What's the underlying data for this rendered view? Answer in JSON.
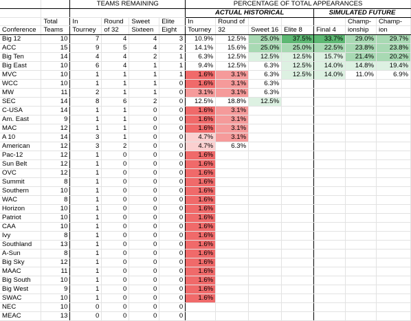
{
  "headers": {
    "teams_remaining": "TEAMS REMAINING",
    "pct_total": "PERCENTAGE OF TOTAL APPEARANCES",
    "actual": "ACTUAL HISTORICAL",
    "simulated": "SIMULATED FUTURE",
    "col1_a": "",
    "col1_b": "Conference",
    "col2_a": "Total",
    "col2_b": "Teams",
    "col3_a": "In",
    "col3_b": "Tourney",
    "col4_a": "Round",
    "col4_b": "of 32",
    "col5_a": "Sweet",
    "col5_b": "Sixteen",
    "col6_a": "Elite",
    "col6_b": "Eight",
    "col7_a": "In",
    "col7_b": "Tourney",
    "col8_a": "Round of",
    "col8_b": "32",
    "col9_a": "",
    "col9_b": "Sweet 16",
    "col10_a": "",
    "col10_b": "Elite 8",
    "col11_a": "",
    "col11_b": "Final 4",
    "col12_a": "Champ-",
    "col12_b": "ionship",
    "col13_a": "Champ-",
    "col13_b": "ion"
  },
  "colors": {
    "red_strong": "#f06a6a",
    "red_mid": "#f59a9a",
    "red_light": "#fbd0d0",
    "green_strong": "#5db873",
    "green_mid": "#a8d9b3",
    "green_light": "#ddf1e2"
  },
  "rows": [
    {
      "conf": "Big 12",
      "total": "10",
      "tourney": "7",
      "r32": "4",
      "s16": "4",
      "e8": "3",
      "p_in": "10.9%",
      "p_r32": "12.5%",
      "p_s16": "25.0%",
      "p_e8": "37.5%",
      "f4": "33.7%",
      "champ_game": "29.0%",
      "champ": "29.7%"
    },
    {
      "conf": "ACC",
      "total": "15",
      "tourney": "9",
      "r32": "5",
      "s16": "4",
      "e8": "2",
      "p_in": "14.1%",
      "p_r32": "15.6%",
      "p_s16": "25.0%",
      "p_e8": "25.0%",
      "f4": "22.5%",
      "champ_game": "23.8%",
      "champ": "23.8%"
    },
    {
      "conf": "Big Ten",
      "total": "14",
      "tourney": "4",
      "r32": "4",
      "s16": "2",
      "e8": "1",
      "p_in": "6.3%",
      "p_r32": "12.5%",
      "p_s16": "12.5%",
      "p_e8": "12.5%",
      "f4": "15.7%",
      "champ_game": "21.4%",
      "champ": "20.2%"
    },
    {
      "conf": "Big East",
      "total": "10",
      "tourney": "6",
      "r32": "4",
      "s16": "1",
      "e8": "1",
      "p_in": "9.4%",
      "p_r32": "12.5%",
      "p_s16": "6.3%",
      "p_e8": "12.5%",
      "f4": "14.0%",
      "champ_game": "14.8%",
      "champ": "19.4%"
    },
    {
      "conf": "MVC",
      "total": "10",
      "tourney": "1",
      "r32": "1",
      "s16": "1",
      "e8": "1",
      "p_in": "1.6%",
      "p_r32": "3.1%",
      "p_s16": "6.3%",
      "p_e8": "12.5%",
      "f4": "14.0%",
      "champ_game": "11.0%",
      "champ": "6.9%"
    },
    {
      "conf": "WCC",
      "total": "10",
      "tourney": "1",
      "r32": "1",
      "s16": "1",
      "e8": "0",
      "p_in": "1.6%",
      "p_r32": "3.1%",
      "p_s16": "6.3%",
      "p_e8": "",
      "f4": "",
      "champ_game": "",
      "champ": ""
    },
    {
      "conf": "MW",
      "total": "11",
      "tourney": "2",
      "r32": "1",
      "s16": "1",
      "e8": "0",
      "p_in": "3.1%",
      "p_r32": "3.1%",
      "p_s16": "6.3%",
      "p_e8": "",
      "f4": "",
      "champ_game": "",
      "champ": ""
    },
    {
      "conf": "SEC",
      "total": "14",
      "tourney": "8",
      "r32": "6",
      "s16": "2",
      "e8": "0",
      "p_in": "12.5%",
      "p_r32": "18.8%",
      "p_s16": "12.5%",
      "p_e8": "",
      "f4": "",
      "champ_game": "",
      "champ": ""
    },
    {
      "conf": "C-USA",
      "total": "14",
      "tourney": "1",
      "r32": "1",
      "s16": "0",
      "e8": "0",
      "p_in": "1.6%",
      "p_r32": "3.1%",
      "p_s16": "",
      "p_e8": "",
      "f4": "",
      "champ_game": "",
      "champ": ""
    },
    {
      "conf": "Am. East",
      "total": "9",
      "tourney": "1",
      "r32": "1",
      "s16": "0",
      "e8": "0",
      "p_in": "1.6%",
      "p_r32": "3.1%",
      "p_s16": "",
      "p_e8": "",
      "f4": "",
      "champ_game": "",
      "champ": ""
    },
    {
      "conf": "MAC",
      "total": "12",
      "tourney": "1",
      "r32": "1",
      "s16": "0",
      "e8": "0",
      "p_in": "1.6%",
      "p_r32": "3.1%",
      "p_s16": "",
      "p_e8": "",
      "f4": "",
      "champ_game": "",
      "champ": ""
    },
    {
      "conf": "A 10",
      "total": "14",
      "tourney": "3",
      "r32": "1",
      "s16": "0",
      "e8": "0",
      "p_in": "4.7%",
      "p_r32": "3.1%",
      "p_s16": "",
      "p_e8": "",
      "f4": "",
      "champ_game": "",
      "champ": ""
    },
    {
      "conf": "American",
      "total": "12",
      "tourney": "3",
      "r32": "2",
      "s16": "0",
      "e8": "0",
      "p_in": "4.7%",
      "p_r32": "6.3%",
      "p_s16": "",
      "p_e8": "",
      "f4": "",
      "champ_game": "",
      "champ": ""
    },
    {
      "conf": "Pac-12",
      "total": "12",
      "tourney": "1",
      "r32": "0",
      "s16": "0",
      "e8": "0",
      "p_in": "1.6%",
      "p_r32": "",
      "p_s16": "",
      "p_e8": "",
      "f4": "",
      "champ_game": "",
      "champ": ""
    },
    {
      "conf": "Sun Belt",
      "total": "12",
      "tourney": "1",
      "r32": "0",
      "s16": "0",
      "e8": "0",
      "p_in": "1.6%",
      "p_r32": "",
      "p_s16": "",
      "p_e8": "",
      "f4": "",
      "champ_game": "",
      "champ": ""
    },
    {
      "conf": "OVC",
      "total": "12",
      "tourney": "1",
      "r32": "0",
      "s16": "0",
      "e8": "0",
      "p_in": "1.6%",
      "p_r32": "",
      "p_s16": "",
      "p_e8": "",
      "f4": "",
      "champ_game": "",
      "champ": ""
    },
    {
      "conf": "Summit",
      "total": "8",
      "tourney": "1",
      "r32": "0",
      "s16": "0",
      "e8": "0",
      "p_in": "1.6%",
      "p_r32": "",
      "p_s16": "",
      "p_e8": "",
      "f4": "",
      "champ_game": "",
      "champ": ""
    },
    {
      "conf": "Southern",
      "total": "10",
      "tourney": "1",
      "r32": "0",
      "s16": "0",
      "e8": "0",
      "p_in": "1.6%",
      "p_r32": "",
      "p_s16": "",
      "p_e8": "",
      "f4": "",
      "champ_game": "",
      "champ": ""
    },
    {
      "conf": "WAC",
      "total": "8",
      "tourney": "1",
      "r32": "0",
      "s16": "0",
      "e8": "0",
      "p_in": "1.6%",
      "p_r32": "",
      "p_s16": "",
      "p_e8": "",
      "f4": "",
      "champ_game": "",
      "champ": ""
    },
    {
      "conf": "Horizon",
      "total": "10",
      "tourney": "1",
      "r32": "0",
      "s16": "0",
      "e8": "0",
      "p_in": "1.6%",
      "p_r32": "",
      "p_s16": "",
      "p_e8": "",
      "f4": "",
      "champ_game": "",
      "champ": ""
    },
    {
      "conf": "Patriot",
      "total": "10",
      "tourney": "1",
      "r32": "0",
      "s16": "0",
      "e8": "0",
      "p_in": "1.6%",
      "p_r32": "",
      "p_s16": "",
      "p_e8": "",
      "f4": "",
      "champ_game": "",
      "champ": ""
    },
    {
      "conf": "CAA",
      "total": "10",
      "tourney": "1",
      "r32": "0",
      "s16": "0",
      "e8": "0",
      "p_in": "1.6%",
      "p_r32": "",
      "p_s16": "",
      "p_e8": "",
      "f4": "",
      "champ_game": "",
      "champ": ""
    },
    {
      "conf": "Ivy",
      "total": "8",
      "tourney": "1",
      "r32": "0",
      "s16": "0",
      "e8": "0",
      "p_in": "1.6%",
      "p_r32": "",
      "p_s16": "",
      "p_e8": "",
      "f4": "",
      "champ_game": "",
      "champ": ""
    },
    {
      "conf": "Southland",
      "total": "13",
      "tourney": "1",
      "r32": "0",
      "s16": "0",
      "e8": "0",
      "p_in": "1.6%",
      "p_r32": "",
      "p_s16": "",
      "p_e8": "",
      "f4": "",
      "champ_game": "",
      "champ": ""
    },
    {
      "conf": "A-Sun",
      "total": "8",
      "tourney": "1",
      "r32": "0",
      "s16": "0",
      "e8": "0",
      "p_in": "1.6%",
      "p_r32": "",
      "p_s16": "",
      "p_e8": "",
      "f4": "",
      "champ_game": "",
      "champ": ""
    },
    {
      "conf": "Big Sky",
      "total": "12",
      "tourney": "1",
      "r32": "0",
      "s16": "0",
      "e8": "0",
      "p_in": "1.6%",
      "p_r32": "",
      "p_s16": "",
      "p_e8": "",
      "f4": "",
      "champ_game": "",
      "champ": ""
    },
    {
      "conf": "MAAC",
      "total": "11",
      "tourney": "1",
      "r32": "0",
      "s16": "0",
      "e8": "0",
      "p_in": "1.6%",
      "p_r32": "",
      "p_s16": "",
      "p_e8": "",
      "f4": "",
      "champ_game": "",
      "champ": ""
    },
    {
      "conf": "Big South",
      "total": "10",
      "tourney": "1",
      "r32": "0",
      "s16": "0",
      "e8": "0",
      "p_in": "1.6%",
      "p_r32": "",
      "p_s16": "",
      "p_e8": "",
      "f4": "",
      "champ_game": "",
      "champ": ""
    },
    {
      "conf": "Big West",
      "total": "9",
      "tourney": "1",
      "r32": "0",
      "s16": "0",
      "e8": "0",
      "p_in": "1.6%",
      "p_r32": "",
      "p_s16": "",
      "p_e8": "",
      "f4": "",
      "champ_game": "",
      "champ": ""
    },
    {
      "conf": "SWAC",
      "total": "10",
      "tourney": "1",
      "r32": "0",
      "s16": "0",
      "e8": "0",
      "p_in": "1.6%",
      "p_r32": "",
      "p_s16": "",
      "p_e8": "",
      "f4": "",
      "champ_game": "",
      "champ": ""
    },
    {
      "conf": "NEC",
      "total": "10",
      "tourney": "0",
      "r32": "0",
      "s16": "0",
      "e8": "0",
      "p_in": "",
      "p_r32": "",
      "p_s16": "",
      "p_e8": "",
      "f4": "",
      "champ_game": "",
      "champ": ""
    },
    {
      "conf": "MEAC",
      "total": "13",
      "tourney": "0",
      "r32": "0",
      "s16": "0",
      "e8": "0",
      "p_in": "",
      "p_r32": "",
      "p_s16": "",
      "p_e8": "",
      "f4": "",
      "champ_game": "",
      "champ": ""
    }
  ]
}
